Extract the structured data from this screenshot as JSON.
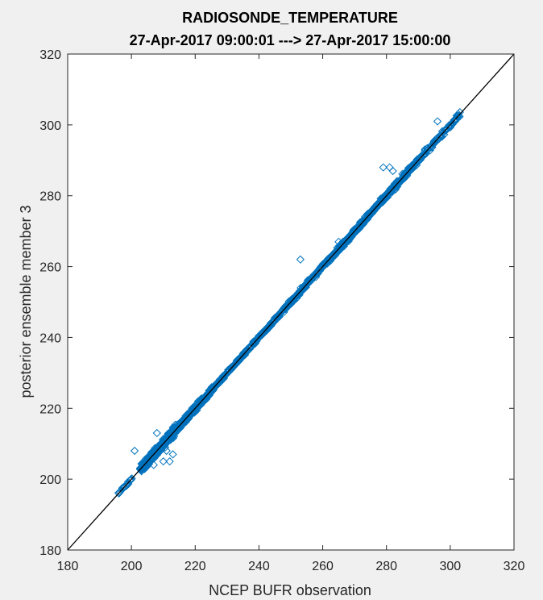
{
  "chart_data": {
    "type": "scatter",
    "title": "RADIOSONDE_TEMPERATURE",
    "subtitle": "27-Apr-2017 09:00:01 ---> 27-Apr-2017 15:00:00",
    "xlabel": "NCEP BUFR observation",
    "ylabel": "posterior ensemble member 3",
    "xlim": [
      180,
      320
    ],
    "ylim": [
      180,
      320
    ],
    "xticks": [
      "180",
      "200",
      "220",
      "240",
      "260",
      "280",
      "300",
      "320"
    ],
    "yticks": [
      "180",
      "200",
      "220",
      "240",
      "260",
      "280",
      "300",
      "320"
    ],
    "grid": false,
    "marker": "diamond-open",
    "series_color": "#0072bd",
    "reference_line": {
      "from": [
        180,
        180
      ],
      "to": [
        320,
        320
      ],
      "color": "#000000"
    },
    "x_range_of_points": [
      196,
      303
    ],
    "clusters": [
      {
        "x": [
          196,
          200
        ],
        "y": [
          196,
          200
        ]
      },
      {
        "x": [
          203,
          214
        ],
        "y": [
          203,
          214
        ]
      },
      {
        "x": [
          214,
          228
        ],
        "y": [
          214,
          228
        ]
      },
      {
        "x": [
          228,
          250
        ],
        "y": [
          228,
          250
        ]
      },
      {
        "x": [
          250,
          265
        ],
        "y": [
          250,
          265
        ]
      },
      {
        "x": [
          265,
          280
        ],
        "y": [
          265,
          280
        ]
      },
      {
        "x": [
          280,
          295
        ],
        "y": [
          280,
          295
        ]
      },
      {
        "x": [
          295,
          303
        ],
        "y": [
          295,
          302
        ]
      }
    ],
    "outliers": [
      {
        "x": 281,
        "y": 288
      },
      {
        "x": 282,
        "y": 287
      },
      {
        "x": 279,
        "y": 288
      },
      {
        "x": 265,
        "y": 267
      },
      {
        "x": 253,
        "y": 262
      },
      {
        "x": 208,
        "y": 213
      },
      {
        "x": 212,
        "y": 205
      },
      {
        "x": 210,
        "y": 205
      },
      {
        "x": 201,
        "y": 208
      },
      {
        "x": 207,
        "y": 204
      },
      {
        "x": 211,
        "y": 208
      },
      {
        "x": 213,
        "y": 207
      },
      {
        "x": 296,
        "y": 301
      }
    ]
  }
}
